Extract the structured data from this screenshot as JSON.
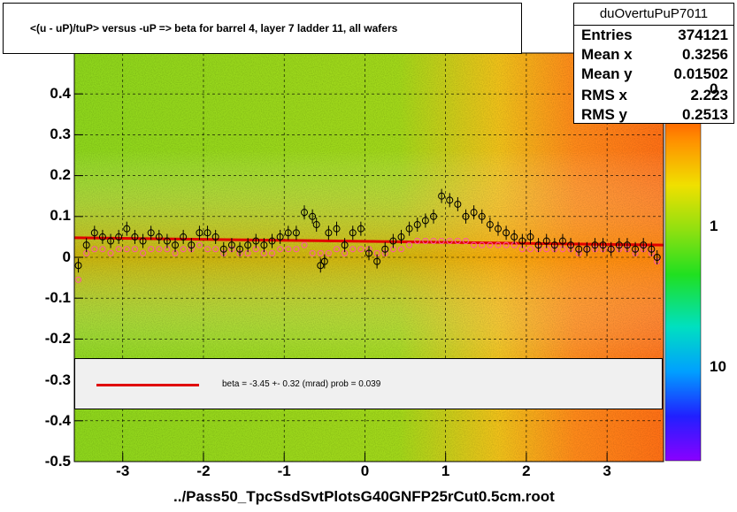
{
  "title": "<(u - uP)/tuP> versus  -uP => beta for barrel 4, layer 7 ladder 11, all wafers",
  "stats": {
    "name": "duOvertuPuP7011",
    "rows": [
      {
        "label": "Entries",
        "value": "374121"
      },
      {
        "label": "Mean x",
        "value": "0.3256"
      },
      {
        "label": "Mean y",
        "value": "0.01502"
      },
      {
        "label": "RMS x",
        "value": "2.223"
      },
      {
        "label": "RMS y",
        "value": "0.2513"
      }
    ]
  },
  "legend": {
    "text": "beta =   -3.45 +-  0.32 (mrad) prob = 0.039",
    "color": "#e00000"
  },
  "x_title": "../Pass50_TpcSsdSvtPlotsG40GNFP25rCut0.5cm.root",
  "z_axis": {
    "ticks": [
      "0",
      "1",
      "10"
    ]
  },
  "colors": {
    "fit": "#e00000",
    "profile_black": "#000000",
    "profile_pink": "#ff55aa",
    "frame_bg": "#ffffff"
  },
  "chart_data": {
    "type": "scatter",
    "xlim": [
      -3.6,
      3.7
    ],
    "ylim": [
      -0.5,
      0.5
    ],
    "x_ticks": [
      -3,
      -2,
      -1,
      0,
      1,
      2,
      3
    ],
    "y_ticks": [
      "0.4",
      "0.3",
      "0.2",
      "0.1",
      "0",
      "-0.1",
      "-0.2",
      "-0.3",
      "-0.4",
      "-0.5"
    ],
    "y_tick_values": [
      0.4,
      0.3,
      0.2,
      0.1,
      0,
      -0.1,
      -0.2,
      -0.3,
      -0.4,
      -0.5
    ],
    "grid": true,
    "fit_line": {
      "x": [
        -3.6,
        3.7
      ],
      "y": [
        0.048,
        0.03
      ]
    },
    "series": [
      {
        "x": [
          -3.55,
          -3.45,
          -3.35,
          -3.25,
          -3.15,
          -3.05,
          -2.95,
          -2.85,
          -2.75,
          -2.65,
          -2.55,
          -2.45,
          -2.35,
          -2.25,
          -2.15,
          -2.05,
          -1.95,
          -1.85,
          -1.75,
          -1.65,
          -1.55,
          -1.45,
          -1.35,
          -1.25,
          -1.15,
          -1.05,
          -0.95,
          -0.85,
          -0.75,
          -0.65,
          -0.6,
          -0.55,
          -0.5,
          -0.45,
          -0.35,
          -0.25,
          -0.15,
          -0.05,
          0.05,
          0.15,
          0.25,
          0.35,
          0.45,
          0.55,
          0.65,
          0.75,
          0.85,
          0.95,
          1.05,
          1.15,
          1.25,
          1.35,
          1.45,
          1.55,
          1.65,
          1.75,
          1.85,
          1.95,
          2.05,
          2.15,
          2.25,
          2.35,
          2.45,
          2.55,
          2.65,
          2.75,
          2.85,
          2.95,
          3.05,
          3.15,
          3.25,
          3.35,
          3.45,
          3.55,
          3.62
        ],
        "y": [
          -0.02,
          0.03,
          0.06,
          0.05,
          0.04,
          0.05,
          0.07,
          0.05,
          0.04,
          0.06,
          0.05,
          0.04,
          0.03,
          0.05,
          0.03,
          0.06,
          0.06,
          0.05,
          0.02,
          0.03,
          0.02,
          0.03,
          0.04,
          0.03,
          0.04,
          0.05,
          0.06,
          0.06,
          0.11,
          0.1,
          0.08,
          -0.02,
          -0.01,
          0.06,
          0.07,
          0.03,
          0.06,
          0.07,
          0.01,
          -0.01,
          0.02,
          0.04,
          0.05,
          0.07,
          0.08,
          0.09,
          0.1,
          0.15,
          0.14,
          0.13,
          0.1,
          0.11,
          0.1,
          0.08,
          0.07,
          0.06,
          0.05,
          0.04,
          0.05,
          0.03,
          0.04,
          0.03,
          0.04,
          0.03,
          0.02,
          0.02,
          0.03,
          0.03,
          0.02,
          0.03,
          0.03,
          0.02,
          0.03,
          0.02,
          0.0
        ]
      },
      {
        "x": [
          -3.55,
          -3.45,
          -3.35,
          -3.25,
          -3.15,
          -3.05,
          -2.95,
          -2.85,
          -2.75,
          -2.65,
          -2.55,
          -2.45,
          -2.35,
          -2.25,
          -2.15,
          -2.05,
          -1.95,
          -1.85,
          -1.75,
          -1.65,
          -1.55,
          -1.45,
          -1.35,
          -1.25,
          -1.15,
          -1.05,
          -0.95,
          -0.85,
          -0.75,
          -0.65,
          -0.55,
          -0.45,
          -0.35,
          -0.25,
          -0.15,
          -0.05,
          0.05,
          0.15,
          0.25,
          0.35,
          0.45,
          0.55,
          0.65,
          0.75,
          0.85,
          0.95,
          1.05,
          1.15,
          1.25,
          1.35,
          1.45,
          1.55,
          1.65,
          1.75,
          1.85,
          1.95,
          2.05,
          2.15,
          2.25,
          2.35,
          2.45,
          2.55,
          2.65,
          2.75,
          2.85,
          2.95,
          3.05,
          3.15,
          3.25,
          3.35,
          3.45,
          3.55,
          3.62
        ],
        "y": [
          -0.055,
          0.01,
          0.02,
          0.02,
          0.01,
          0.02,
          0.02,
          0.02,
          0.01,
          0.02,
          0.02,
          0.02,
          0.01,
          0.02,
          0.02,
          0.03,
          0.02,
          0.02,
          0.01,
          0.02,
          0.01,
          0.01,
          0.02,
          0.01,
          0.01,
          0.02,
          0.02,
          0.02,
          0.03,
          0.01,
          0.01,
          0.01,
          0.02,
          0.01,
          0.02,
          0.02,
          0.02,
          0.01,
          0.01,
          0.02,
          0.02,
          0.03,
          0.04,
          0.04,
          0.04,
          0.04,
          0.04,
          0.04,
          0.04,
          0.03,
          0.03,
          0.03,
          0.03,
          0.03,
          0.03,
          0.02,
          0.02,
          0.02,
          0.02,
          0.02,
          0.02,
          0.02,
          0.01,
          0.02,
          0.02,
          0.02,
          0.02,
          0.02,
          0.02,
          0.01,
          0.02,
          0.01,
          -0.01
        ]
      }
    ]
  }
}
